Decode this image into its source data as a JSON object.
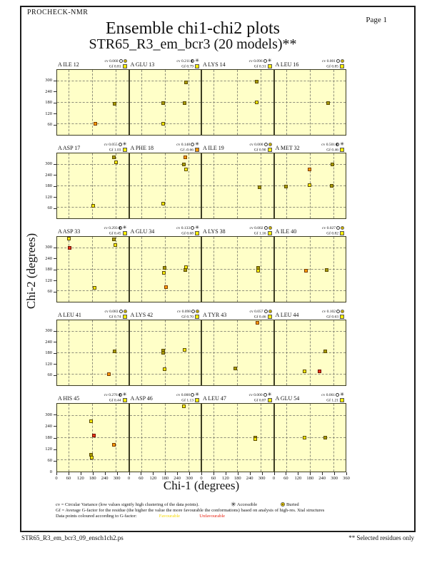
{
  "page": {
    "app_name": "PROCHECK-NMR",
    "page_label": "Page  1",
    "title": "Ensemble chi1-chi2 plots",
    "subtitle": "STR65_R3_em_bcr3 (20 models)**",
    "footer_left": "STR65_R3_em_bcr3_09_ensch1ch2.ps",
    "footer_right": "** Selected residues only"
  },
  "legend": {
    "cv_text": "cv = Circular Variance (low values signify high clustering of the data points).",
    "accessible_label": "Accessible",
    "buried_label": "Buried",
    "gf_text": "Gf = Average G-factor for the residue (the higher the value the more favourable the conformations)  based on analysis of high-res. Xtal structures",
    "colour_text": "Data points coloured according to G-factor:",
    "favourable_label": "Favourable",
    "unfavourable_label": "Unfavourable"
  },
  "colors": {
    "plot_bg": "#ffffc8",
    "point_favourable_yellow": "#ffee00",
    "point_cluster_dark": "#a89c00",
    "point_orange": "#ff9900",
    "point_unfavourable_red": "#e83418",
    "gf_square_yellow": "#ffee00",
    "gf_square_orange": "#ff9900"
  },
  "chart_data": {
    "type": "scatter",
    "title": "Ensemble chi1-chi2 plots",
    "xlabel": "Chi-1 (degrees)",
    "ylabel": "Chi-2 (degrees)",
    "xlim": [
      0,
      360
    ],
    "ylim": [
      0,
      360
    ],
    "x_ticks": [
      0,
      60,
      120,
      180,
      240,
      300
    ],
    "x_end_tick": 360,
    "y_ticks": [
      300,
      240,
      180,
      120,
      60
    ],
    "origin_label": "0",
    "grid_lines_deg": [
      60,
      180,
      300
    ],
    "grid_on": true,
    "rows": 5,
    "cols": 4,
    "point_color_legend": {
      "y": "favourable yellow",
      "d": "overlapping cluster dark",
      "o": "orange (less favourable)",
      "r": "unfavourable red"
    },
    "panels": [
      {
        "residue": "A ILE 12",
        "cv": "0.060",
        "cv_circle": "open",
        "access": "buried",
        "gf": "0.81",
        "gf_color": "yellow",
        "points": [
          {
            "chi1": 195,
            "chi2": 58,
            "c": "o"
          },
          {
            "chi1": 295,
            "chi2": 170,
            "c": "d"
          }
        ]
      },
      {
        "residue": "A GLU 13",
        "cv": "0.211",
        "cv_circle": "half",
        "access": "accessible",
        "gf": "0.79",
        "gf_color": "yellow",
        "points": [
          {
            "chi1": 287,
            "chi2": 290,
            "c": "d"
          },
          {
            "chi1": 173,
            "chi2": 175,
            "c": "d"
          },
          {
            "chi1": 281,
            "chi2": 175,
            "c": "d"
          },
          {
            "chi1": 170,
            "chi2": 60,
            "c": "y"
          }
        ]
      },
      {
        "residue": "A LYS 14",
        "cv": "0.096",
        "cv_circle": "open",
        "access": "accessible",
        "gf": "0.31",
        "gf_color": "yellow",
        "points": [
          {
            "chi1": 281,
            "chi2": 295,
            "c": "d"
          },
          {
            "chi1": 279,
            "chi2": 180,
            "c": "y"
          }
        ]
      },
      {
        "residue": "A LEU 16",
        "cv": "0.001",
        "cv_circle": "open",
        "access": "buried",
        "gf": "0.85",
        "gf_color": "yellow",
        "points": [
          {
            "chi1": 275,
            "chi2": 175,
            "c": "d"
          }
        ]
      },
      {
        "residue": "A ASP 17",
        "cv": "0.055",
        "cv_circle": "open",
        "access": "accessible",
        "gf": "1.03",
        "gf_color": "yellow",
        "points": [
          {
            "chi1": 290,
            "chi2": 338,
            "c": "d"
          },
          {
            "chi1": 300,
            "chi2": 312,
            "c": "y"
          },
          {
            "chi1": 186,
            "chi2": 66,
            "c": "y"
          }
        ]
      },
      {
        "residue": "A PHE 18",
        "cv": "0.148",
        "cv_circle": "open",
        "access": "accessible",
        "gf": "-0.66",
        "gf_color": "orange",
        "points": [
          {
            "chi1": 285,
            "chi2": 340,
            "c": "o"
          },
          {
            "chi1": 278,
            "chi2": 300,
            "c": "d"
          },
          {
            "chi1": 287,
            "chi2": 272,
            "c": "y"
          },
          {
            "chi1": 170,
            "chi2": 80,
            "c": "y"
          }
        ]
      },
      {
        "residue": "A ILE 19",
        "cv": "0.000",
        "cv_circle": "open",
        "access": "buried",
        "gf": "0.90",
        "gf_color": "yellow",
        "points": [
          {
            "chi1": 293,
            "chi2": 170,
            "c": "d"
          }
        ]
      },
      {
        "residue": "A MET 32",
        "cv": "0.501",
        "cv_circle": "half",
        "access": "accessible",
        "gf": "0.46",
        "gf_color": "yellow",
        "points": [
          {
            "chi1": 60,
            "chi2": 175,
            "c": "d"
          },
          {
            "chi1": 180,
            "chi2": 183,
            "c": "y"
          },
          {
            "chi1": 180,
            "chi2": 270,
            "c": "o"
          },
          {
            "chi1": 293,
            "chi2": 180,
            "c": "d"
          },
          {
            "chi1": 295,
            "chi2": 300,
            "c": "d"
          }
        ]
      },
      {
        "residue": "A ASP 33",
        "cv": "0.293",
        "cv_circle": "half",
        "access": "accessible",
        "gf": "0.45",
        "gf_color": "yellow",
        "points": [
          {
            "chi1": 60,
            "chi2": 350,
            "c": "y"
          },
          {
            "chi1": 64,
            "chi2": 298,
            "c": "r"
          },
          {
            "chi1": 292,
            "chi2": 347,
            "c": "d"
          },
          {
            "chi1": 298,
            "chi2": 315,
            "c": "y"
          },
          {
            "chi1": 192,
            "chi2": 76,
            "c": "y"
          }
        ]
      },
      {
        "residue": "A GLU 34",
        "cv": "0.133",
        "cv_circle": "open",
        "access": "accessible",
        "gf": "0.68",
        "gf_color": "yellow",
        "points": [
          {
            "chi1": 178,
            "chi2": 185,
            "c": "d"
          },
          {
            "chi1": 177,
            "chi2": 160,
            "c": "y"
          },
          {
            "chi1": 287,
            "chi2": 190,
            "c": "y"
          },
          {
            "chi1": 284,
            "chi2": 176,
            "c": "d"
          },
          {
            "chi1": 186,
            "chi2": 78,
            "c": "o"
          }
        ]
      },
      {
        "residue": "A LYS 38",
        "cv": "0.002",
        "cv_circle": "open",
        "access": "buried",
        "gf": "1.16",
        "gf_color": "yellow",
        "points": [
          {
            "chi1": 288,
            "chi2": 186,
            "c": "d"
          },
          {
            "chi1": 288,
            "chi2": 172,
            "c": "y"
          }
        ]
      },
      {
        "residue": "A ILE 40",
        "cv": "0.027",
        "cv_circle": "open",
        "access": "buried",
        "gf": "0.82",
        "gf_color": "yellow",
        "points": [
          {
            "chi1": 162,
            "chi2": 171,
            "c": "o"
          },
          {
            "chi1": 265,
            "chi2": 173,
            "c": "d"
          }
        ]
      },
      {
        "residue": "A LEU 41",
        "cv": "0.083",
        "cv_circle": "open",
        "access": "buried",
        "gf": "0.74",
        "gf_color": "yellow",
        "points": [
          {
            "chi1": 294,
            "chi2": 185,
            "c": "d"
          },
          {
            "chi1": 265,
            "chi2": 57,
            "c": "o"
          }
        ]
      },
      {
        "residue": "A LYS 42",
        "cv": "0.098",
        "cv_circle": "open",
        "access": "buried",
        "gf": "0.70",
        "gf_color": "yellow",
        "points": [
          {
            "chi1": 172,
            "chi2": 190,
            "c": "d"
          },
          {
            "chi1": 173,
            "chi2": 179,
            "c": "d"
          },
          {
            "chi1": 280,
            "chi2": 193,
            "c": "y"
          },
          {
            "chi1": 179,
            "chi2": 87,
            "c": "y"
          }
        ]
      },
      {
        "residue": "A TYR 43",
        "cv": "0.057",
        "cv_circle": "open",
        "access": "buried",
        "gf": "0.46",
        "gf_color": "yellow",
        "points": [
          {
            "chi1": 283,
            "chi2": 345,
            "c": "o"
          },
          {
            "chi1": 170,
            "chi2": 92,
            "c": "d"
          }
        ]
      },
      {
        "residue": "A LEU 44",
        "cv": "0.102",
        "cv_circle": "open",
        "access": "buried",
        "gf": "0.63",
        "gf_color": "yellow",
        "points": [
          {
            "chi1": 260,
            "chi2": 185,
            "c": "d"
          },
          {
            "chi1": 155,
            "chi2": 75,
            "c": "y"
          },
          {
            "chi1": 230,
            "chi2": 75,
            "c": "r"
          }
        ]
      },
      {
        "residue": "A HIS 45",
        "cv": "0.276",
        "cv_circle": "half",
        "access": "accessible",
        "gf": "0.44",
        "gf_color": "yellow",
        "points": [
          {
            "chi1": 172,
            "chi2": 265,
            "c": "y"
          },
          {
            "chi1": 187,
            "chi2": 190,
            "c": "r"
          },
          {
            "chi1": 292,
            "chi2": 138,
            "c": "o"
          },
          {
            "chi1": 175,
            "chi2": 88,
            "c": "d"
          },
          {
            "chi1": 176,
            "chi2": 72,
            "c": "y"
          }
        ]
      },
      {
        "residue": "A ASP 46",
        "cv": "0.000",
        "cv_circle": "open",
        "access": "accessible",
        "gf": "1.13",
        "gf_color": "yellow",
        "points": [
          {
            "chi1": 277,
            "chi2": 348,
            "c": "y"
          }
        ]
      },
      {
        "residue": "A LEU 47",
        "cv": "0.000",
        "cv_circle": "open",
        "access": "accessible",
        "gf": "0.87",
        "gf_color": "yellow",
        "points": [
          {
            "chi1": 272,
            "chi2": 180,
            "c": "d"
          },
          {
            "chi1": 272,
            "chi2": 170,
            "c": "y"
          }
        ]
      },
      {
        "residue": "A GLU 54",
        "cv": "0.061",
        "cv_circle": "open",
        "access": "accessible",
        "gf": "1.21",
        "gf_color": "yellow",
        "points": [
          {
            "chi1": 155,
            "chi2": 180,
            "c": "y"
          },
          {
            "chi1": 260,
            "chi2": 180,
            "c": "d"
          }
        ]
      }
    ]
  }
}
